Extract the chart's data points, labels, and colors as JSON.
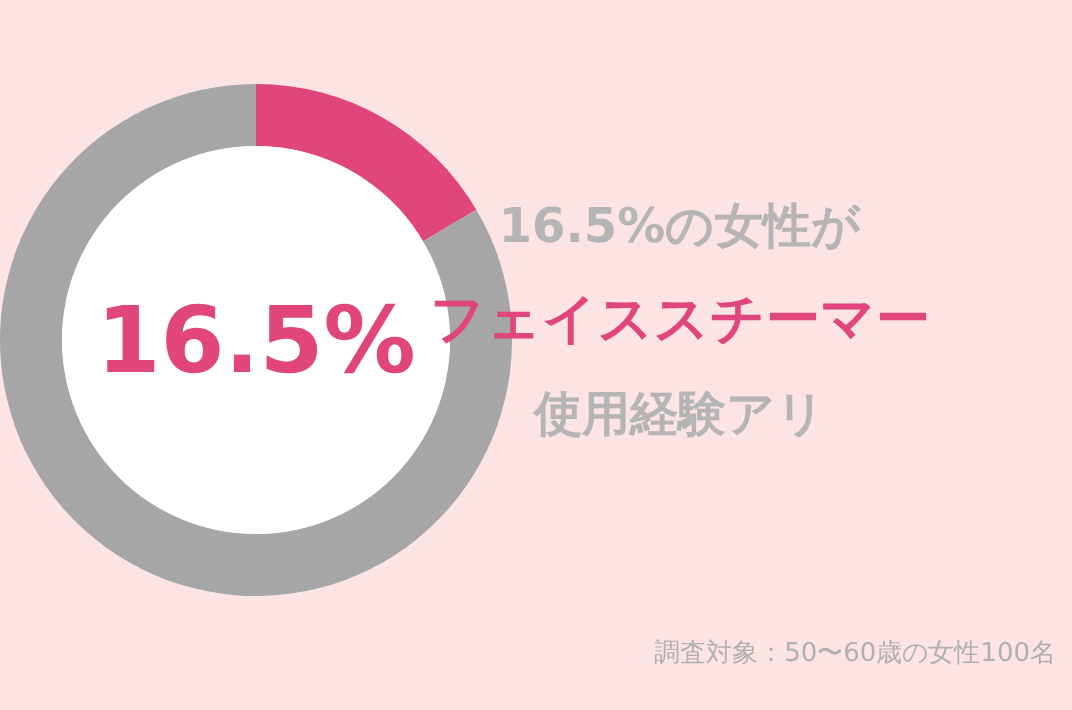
{
  "chart_data": {
    "type": "donut",
    "categories": [
      null,
      null
    ],
    "values": [
      16.5,
      83.5
    ],
    "colors": [
      "#e0457b",
      "#a6a6a6"
    ],
    "value_labels": [
      "16.5%",
      null
    ],
    "annotations": [
      "16.5%の女性が",
      "フェイススチーマー",
      "使用経験アリ",
      "調査対象：50〜60歳の女性100名"
    ]
  }
}
